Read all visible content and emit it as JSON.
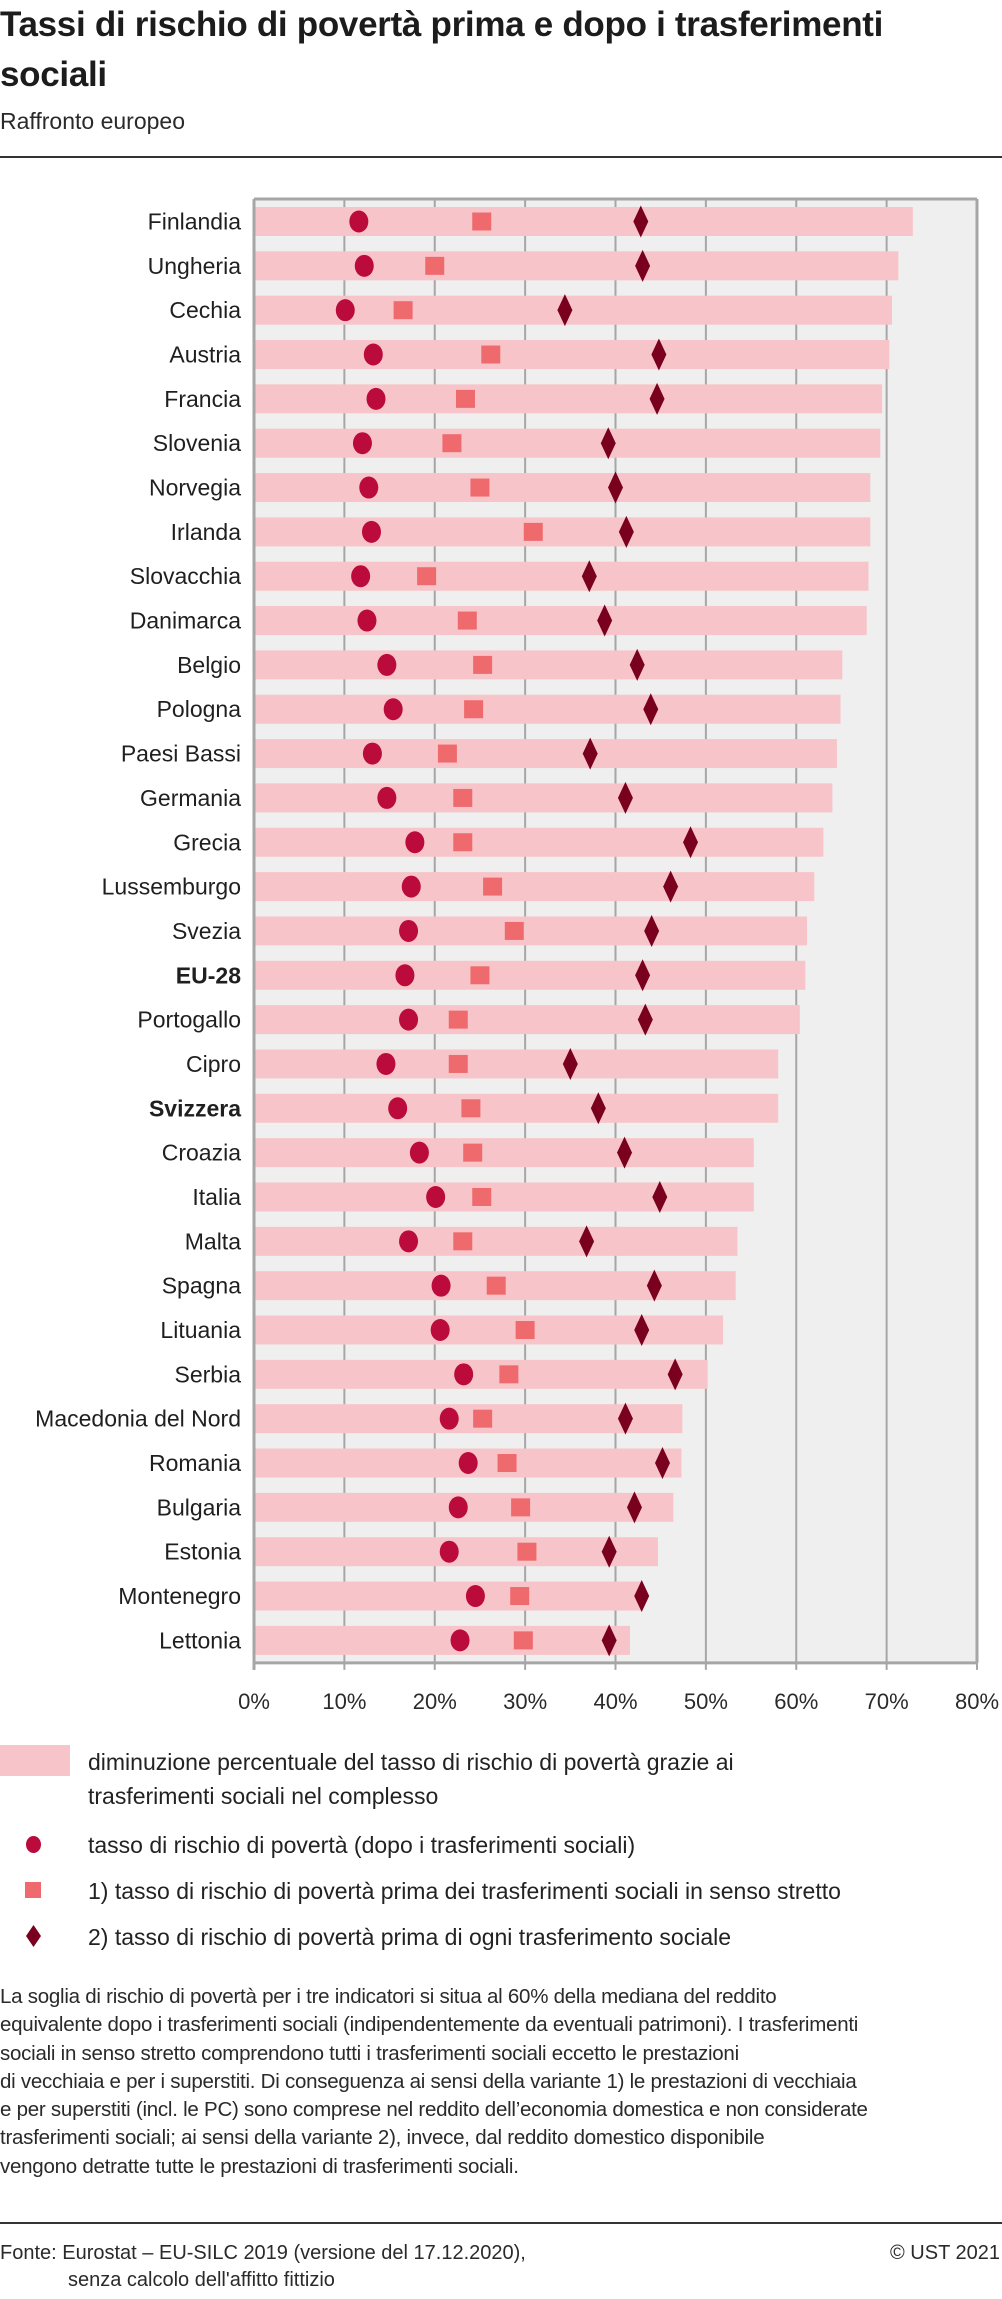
{
  "header": {
    "title": "Tassi di rischio di povertà prima e dopo i trasferimenti sociali",
    "subtitle": "Raffronto europeo"
  },
  "colors": {
    "bar": "#f7c5c9",
    "circle": "#bb0a3c",
    "square": "#ef6a6d",
    "diamond": "#7a0020",
    "plot_background": "#efefef",
    "grid": "#a6a6a6"
  },
  "chart_data": {
    "type": "bar",
    "orientation": "horizontal",
    "title": "Tassi di rischio di povertà prima e dopo i trasferimenti sociali",
    "subtitle": "Raffronto europeo",
    "xlabel": "",
    "ylabel": "",
    "xlim": [
      0,
      80
    ],
    "x_ticks": [
      "0%",
      "10%",
      "20%",
      "30%",
      "40%",
      "50%",
      "60%",
      "70%",
      "80%"
    ],
    "grid": true,
    "legend_position": "bottom",
    "categories": [
      "Finlandia",
      "Ungheria",
      "Cechia",
      "Austria",
      "Francia",
      "Slovenia",
      "Norvegia",
      "Irlanda",
      "Slovacchia",
      "Danimarca",
      "Belgio",
      "Pologna",
      "Paesi Bassi",
      "Germania",
      "Grecia",
      "Lussemburgo",
      "Svezia",
      "EU-28",
      "Portogallo",
      "Cipro",
      "Svizzera",
      "Croazia",
      "Italia",
      "Malta",
      "Spagna",
      "Lituania",
      "Serbia",
      "Macedonia del Nord",
      "Romania",
      "Bulgaria",
      "Estonia",
      "Montenegro",
      "Lettonia"
    ],
    "highlighted": [
      "EU-28",
      "Svizzera"
    ],
    "series": [
      {
        "name": "diminuzione percentuale del tasso di rischio di povertà grazie ai trasferimenti sociali nel complesso",
        "marker": "bar",
        "values": [
          72.9,
          71.3,
          70.6,
          70.3,
          69.5,
          69.3,
          68.2,
          68.2,
          68.0,
          67.8,
          65.1,
          64.9,
          64.5,
          64.0,
          63.0,
          62.0,
          61.2,
          61.0,
          60.4,
          58.0,
          58.0,
          55.3,
          55.3,
          53.5,
          53.3,
          51.9,
          50.2,
          47.4,
          47.3,
          46.4,
          44.7,
          42.9,
          41.6
        ]
      },
      {
        "name": "tasso di rischio di povertà (dopo i trasferimenti sociali)",
        "marker": "circle",
        "values": [
          11.6,
          12.2,
          10.1,
          13.2,
          13.5,
          12.0,
          12.7,
          13.0,
          11.8,
          12.5,
          14.7,
          15.4,
          13.1,
          14.7,
          17.8,
          17.4,
          17.1,
          16.7,
          17.1,
          14.6,
          15.9,
          18.3,
          20.1,
          17.1,
          20.7,
          20.6,
          23.2,
          21.6,
          23.7,
          22.6,
          21.6,
          24.5,
          22.8
        ]
      },
      {
        "name": "1) tasso di rischio di povertà prima dei trasferimenti sociali in senso stretto",
        "marker": "square",
        "values": [
          25.2,
          20.0,
          16.5,
          26.2,
          23.4,
          21.9,
          25.0,
          30.9,
          19.1,
          23.6,
          25.3,
          24.3,
          21.4,
          23.1,
          23.1,
          26.4,
          28.8,
          25.0,
          22.6,
          22.6,
          24.0,
          24.2,
          25.2,
          23.1,
          26.8,
          30.0,
          28.2,
          25.3,
          28.0,
          29.5,
          30.2,
          29.4,
          29.8
        ]
      },
      {
        "name": "2) tasso di rischio di povertà prima di ogni trasferimento sociale",
        "marker": "diamond",
        "values": [
          42.8,
          43.0,
          34.4,
          44.8,
          44.6,
          39.2,
          40.0,
          41.2,
          37.1,
          38.8,
          42.4,
          43.9,
          37.2,
          41.1,
          48.3,
          46.1,
          44.0,
          43.0,
          43.3,
          35.0,
          38.1,
          41.0,
          44.9,
          36.8,
          44.3,
          42.9,
          46.6,
          41.1,
          45.2,
          42.1,
          39.3,
          42.9,
          39.3
        ]
      }
    ]
  },
  "legend": {
    "bar": "diminuzione percentuale del tasso di rischio di povertà grazie ai trasferimenti sociali nel complesso",
    "bar_line1": "diminuzione percentuale del tasso di rischio di povertà grazie ai",
    "bar_line2": "trasferimenti sociali nel complesso",
    "circle": "tasso di rischio di povertà (dopo i trasferimenti sociali)",
    "square": "1) tasso di rischio di povertà prima dei trasferimenti sociali in senso stretto",
    "diamond": "2) tasso di rischio di povertà prima di ogni trasferimento sociale"
  },
  "note": "La soglia di rischio di povertà per i tre indicatori si situa al 60% della mediana del reddito\nequivalente dopo i trasferimenti sociali (indipendentemente da eventuali patrimoni). I trasferimenti\nsociali in senso stretto comprendono tutti i trasferimenti sociali eccetto le prestazioni\ndi vecchiaia e per i superstiti. Di conseguenza ai sensi della variante 1) le prestazioni di vecchiaia\ne per superstiti (incl. le PC) sono comprese nel reddito dell’economia domestica e non considerate\ntrasferimenti sociali; ai sensi della variante 2), invece, dal reddito domestico disponibile\nvengono detratte tutte le prestazioni di trasferimenti sociali.",
  "footer": {
    "source_line1": "Fonte: Eurostat – EU-SILC 2019 (versione del 17.12.2020),",
    "source_line2": "senza calcolo dell'affitto fittizio",
    "copyright": "© UST 2021"
  }
}
